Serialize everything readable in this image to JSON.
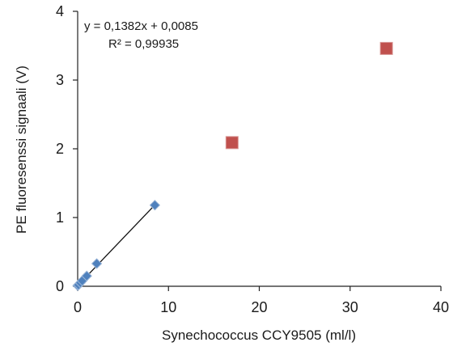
{
  "chart_data": {
    "type": "scatter",
    "xlabel": "Synechococcus CCY9505 (ml/l)",
    "ylabel": "PE fluoresenssi signaali (V)",
    "xlim": [
      0,
      40
    ],
    "ylim": [
      0,
      4
    ],
    "x_ticks": [
      "0",
      "10",
      "20",
      "30",
      "40"
    ],
    "y_ticks": [
      "0",
      "1",
      "2",
      "3",
      "4"
    ],
    "grid": false,
    "legend": "none",
    "annotation": {
      "equation": "y = 0,1382x + 0,0085",
      "r_squared": "R² = 0,99935"
    },
    "trendline": {
      "slope": 0.1382,
      "intercept": 0.0085,
      "x_range": [
        0,
        8.5
      ]
    },
    "series": [
      {
        "marker": "diamond",
        "color": "#4f81bd",
        "x": [
          0,
          0.1,
          0.3,
          0.5,
          1.0,
          2.1,
          8.5
        ],
        "y": [
          0.01,
          0.02,
          0.05,
          0.08,
          0.15,
          0.33,
          1.18
        ]
      },
      {
        "marker": "square",
        "color": "#c0504d",
        "x": [
          17,
          34
        ],
        "y": [
          2.09,
          3.46
        ]
      }
    ]
  }
}
